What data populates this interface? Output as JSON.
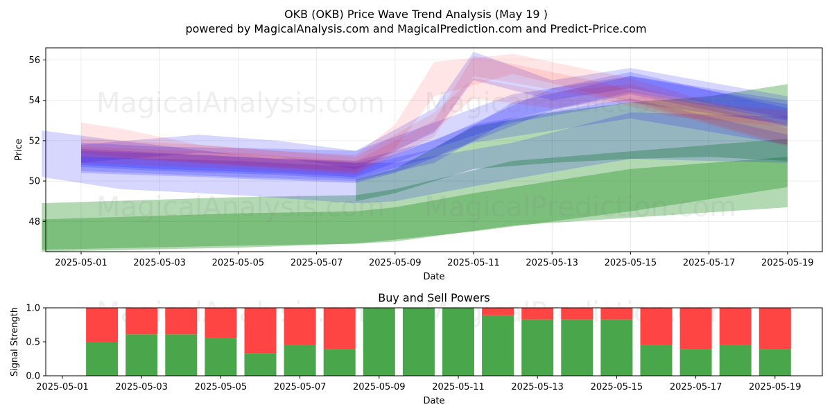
{
  "title": "OKB (OKB) Price Wave Trend Analysis (May 19 )",
  "subtitle": "powered by MagicalAnalysis.com and MagicalPrediction.com and Predict-Price.com",
  "watermarks": [
    "MagicalAnalysis.com",
    "MagicalPrediction.com"
  ],
  "chart_data": [
    {
      "type": "area",
      "title": "",
      "xlabel": "Date",
      "ylabel": "Price",
      "x_ticks": [
        "2025-05-01",
        "2025-05-03",
        "2025-05-05",
        "2025-05-07",
        "2025-05-09",
        "2025-05-11",
        "2025-05-13",
        "2025-05-15",
        "2025-05-17",
        "2025-05-19"
      ],
      "y_ticks": [
        48,
        50,
        52,
        54,
        56
      ],
      "xlim": [
        "2025-04-30",
        "2025-05-20"
      ],
      "ylim": [
        46.5,
        56.6
      ],
      "grid": true,
      "colors": {
        "green": "#008000",
        "blue": "#0000ff",
        "red": "#ff0000"
      },
      "green_bands": [
        {
          "x": [
            "2025-04-30",
            "2025-05-05",
            "2025-05-08",
            "2025-05-09",
            "2025-05-12",
            "2025-05-19"
          ],
          "upper": [
            48.9,
            49.2,
            49.3,
            49.6,
            51.0,
            52.1
          ],
          "lower": [
            46.6,
            46.8,
            46.9,
            47.0,
            47.8,
            48.7
          ]
        },
        {
          "x": [
            "2025-04-30",
            "2025-05-05",
            "2025-05-08",
            "2025-05-09",
            "2025-05-11",
            "2025-05-15",
            "2025-05-19"
          ],
          "upper": [
            48.1,
            48.4,
            48.5,
            48.7,
            49.4,
            50.6,
            51.2
          ],
          "lower": [
            46.5,
            46.7,
            46.9,
            47.1,
            47.5,
            48.5,
            49.7
          ]
        },
        {
          "x": [
            "2025-05-08",
            "2025-05-09",
            "2025-05-11",
            "2025-05-13",
            "2025-05-15",
            "2025-05-17",
            "2025-05-19"
          ],
          "upper": [
            50.1,
            50.6,
            52.7,
            53.4,
            53.9,
            54.2,
            54.8
          ],
          "lower": [
            49.0,
            49.4,
            50.6,
            50.9,
            51.1,
            51.2,
            51.0
          ]
        }
      ],
      "blue_bands": [
        {
          "x": [
            "2025-04-30",
            "2025-05-02",
            "2025-05-05",
            "2025-05-08",
            "2025-05-09",
            "2025-05-12",
            "2025-05-15",
            "2025-05-19"
          ],
          "upper": [
            52.5,
            52.0,
            51.3,
            50.9,
            50.9,
            51.9,
            53.4,
            53.2
          ],
          "lower": [
            50.2,
            49.6,
            49.3,
            48.9,
            49.0,
            50.1,
            51.1,
            50.9
          ]
        },
        {
          "x": [
            "2025-05-01",
            "2025-05-04",
            "2025-05-08",
            "2025-05-09",
            "2025-05-11",
            "2025-05-15",
            "2025-05-19"
          ],
          "upper": [
            51.5,
            51.3,
            50.9,
            51.3,
            52.8,
            54.1,
            52.3
          ],
          "lower": [
            50.4,
            50.2,
            49.9,
            50.4,
            51.9,
            53.1,
            51.8
          ]
        },
        {
          "x": [
            "2025-05-01",
            "2025-05-03",
            "2025-05-06",
            "2025-05-08",
            "2025-05-10",
            "2025-05-12",
            "2025-05-15",
            "2025-05-19"
          ],
          "upper": [
            51.9,
            51.7,
            51.6,
            51.5,
            52.9,
            54.3,
            55.2,
            54.0
          ],
          "lower": [
            50.8,
            50.6,
            50.4,
            50.2,
            51.6,
            52.9,
            53.9,
            52.8
          ]
        },
        {
          "x": [
            "2025-05-01",
            "2025-05-03",
            "2025-05-06",
            "2025-05-08",
            "2025-05-10",
            "2025-05-13",
            "2025-05-15",
            "2025-05-19"
          ],
          "upper": [
            51.6,
            51.4,
            51.1,
            51.0,
            52.0,
            54.6,
            55.4,
            53.6
          ],
          "lower": [
            50.7,
            50.5,
            50.3,
            50.1,
            51.2,
            53.5,
            54.3,
            52.7
          ]
        },
        {
          "x": [
            "2025-05-01",
            "2025-05-04",
            "2025-05-06",
            "2025-05-08",
            "2025-05-10",
            "2025-05-11",
            "2025-05-13",
            "2025-05-15",
            "2025-05-19"
          ],
          "upper": [
            51.8,
            52.3,
            52.0,
            51.5,
            53.6,
            56.4,
            55.0,
            55.6,
            54.2
          ],
          "lower": [
            50.9,
            51.4,
            51.2,
            50.6,
            52.4,
            55.0,
            54.0,
            54.6,
            53.1
          ]
        },
        {
          "x": [
            "2025-05-01",
            "2025-05-05",
            "2025-05-08",
            "2025-05-10",
            "2025-05-12",
            "2025-05-15",
            "2025-05-19"
          ],
          "upper": [
            51.2,
            51.0,
            50.7,
            51.6,
            53.9,
            55.2,
            53.8
          ],
          "lower": [
            50.5,
            50.2,
            50.0,
            50.9,
            53.1,
            54.4,
            53.0
          ]
        }
      ],
      "red_bands": [
        {
          "x": [
            "2025-05-01",
            "2025-05-02",
            "2025-05-04",
            "2025-05-06",
            "2025-05-08",
            "2025-05-09",
            "2025-05-10",
            "2025-05-12",
            "2025-05-15",
            "2025-05-19"
          ],
          "upper": [
            52.9,
            52.6,
            51.8,
            51.5,
            51.3,
            52.8,
            55.9,
            56.3,
            55.1,
            52.8
          ],
          "lower": [
            51.4,
            51.2,
            50.9,
            50.7,
            50.5,
            51.6,
            54.2,
            55.3,
            53.9,
            51.7
          ]
        },
        {
          "x": [
            "2025-05-01",
            "2025-05-04",
            "2025-05-08",
            "2025-05-10",
            "2025-05-11",
            "2025-05-13",
            "2025-05-15",
            "2025-05-19"
          ],
          "upper": [
            52.1,
            51.8,
            51.2,
            53.4,
            55.1,
            54.4,
            54.8,
            52.6
          ],
          "lower": [
            51.2,
            50.9,
            50.4,
            52.5,
            54.1,
            53.6,
            54.0,
            51.8
          ]
        },
        {
          "x": [
            "2025-05-01",
            "2025-05-05",
            "2025-05-08",
            "2025-05-10",
            "2025-05-11",
            "2025-05-14",
            "2025-05-16",
            "2025-05-19"
          ],
          "upper": [
            51.7,
            51.4,
            51.0,
            53.0,
            56.2,
            55.0,
            54.0,
            53.5
          ],
          "lower": [
            50.9,
            50.6,
            50.3,
            52.2,
            55.2,
            54.2,
            53.2,
            52.7
          ]
        }
      ]
    },
    {
      "type": "bar",
      "title": "Buy and Sell Powers",
      "xlabel": "Date",
      "ylabel": "Signal Strength",
      "x_ticks": [
        "2025-05-01",
        "2025-05-03",
        "2025-05-05",
        "2025-05-07",
        "2025-05-09",
        "2025-05-11",
        "2025-05-13",
        "2025-05-15",
        "2025-05-17",
        "2025-05-19"
      ],
      "y_ticks": [
        "0.0",
        "0.5",
        "1.0"
      ],
      "ylim": [
        0,
        1
      ],
      "xlim": [
        "2025-04-30",
        "2025-05-20"
      ],
      "stacked": true,
      "categories": [
        "2025-05-02",
        "2025-05-03",
        "2025-05-04",
        "2025-05-05",
        "2025-05-06",
        "2025-05-07",
        "2025-05-08",
        "2025-05-09",
        "2025-05-10",
        "2025-05-11",
        "2025-05-12",
        "2025-05-13",
        "2025-05-14",
        "2025-05-15",
        "2025-05-16",
        "2025-05-17",
        "2025-05-18",
        "2025-05-19"
      ],
      "buy": [
        0.5,
        0.61,
        0.61,
        0.56,
        0.33,
        0.45,
        0.39,
        1.0,
        1.0,
        1.0,
        0.89,
        0.83,
        0.83,
        0.83,
        0.45,
        0.39,
        0.45,
        0.39
      ],
      "colors": {
        "buy": "#4aa64a",
        "sell": "#ff4444"
      }
    }
  ]
}
